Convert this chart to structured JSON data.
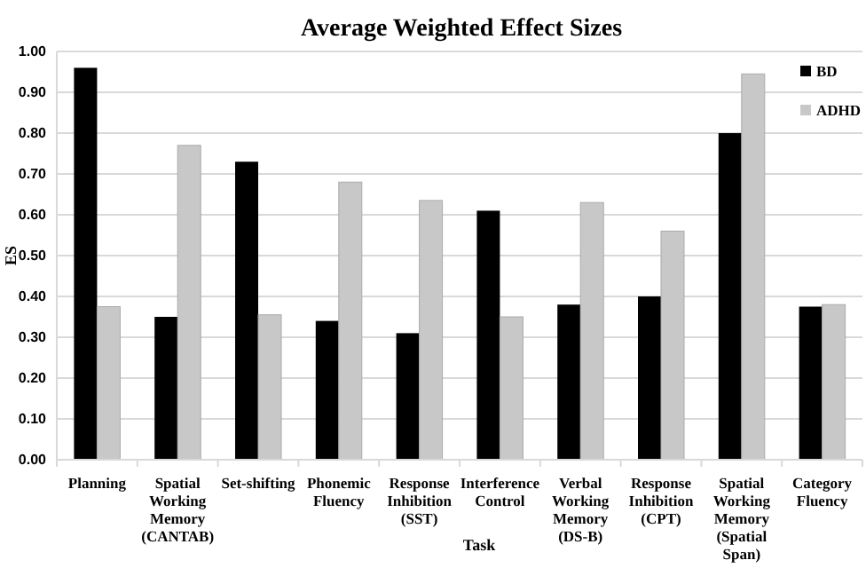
{
  "chart_data": {
    "type": "bar",
    "title": "Average Weighted Effect Sizes",
    "xlabel": "Task",
    "ylabel": "ES",
    "categories": [
      "Planning",
      "Spatial Working Memory (CANTAB)",
      "Set-shifting",
      "Phonemic Fluency",
      "Response Inhibition (SST)",
      "Interference Control",
      "Verbal Working Memory (DS-B)",
      "Response Inhibition (CPT)",
      "Spatial Working Memory (Spatial Span)",
      "Category Fluency"
    ],
    "series": [
      {
        "name": "BD",
        "color": "#000000",
        "values": [
          0.96,
          0.35,
          0.73,
          0.34,
          0.31,
          0.61,
          0.38,
          0.4,
          0.8,
          0.375
        ]
      },
      {
        "name": "ADHD",
        "color": "#c8c8c8",
        "values": [
          0.375,
          0.77,
          0.355,
          0.68,
          0.635,
          0.35,
          0.63,
          0.56,
          0.945,
          0.38
        ]
      }
    ],
    "ylim": [
      0,
      1
    ],
    "yticks": [
      {
        "value": 0,
        "label": "0.00"
      },
      {
        "value": 0.1,
        "label": "0.10"
      },
      {
        "value": 0.2,
        "label": "0.20"
      },
      {
        "value": 0.3,
        "label": "0.30"
      },
      {
        "value": 0.4,
        "label": "0.40"
      },
      {
        "value": 0.5,
        "label": "0.50"
      },
      {
        "value": 0.6,
        "label": "0.60"
      },
      {
        "value": 0.7,
        "label": "0.70"
      },
      {
        "value": 0.8,
        "label": "0.80"
      },
      {
        "value": 0.9,
        "label": "0.90"
      },
      {
        "value": 1,
        "label": "1.00"
      }
    ],
    "grid": "y",
    "legend": "top right"
  }
}
